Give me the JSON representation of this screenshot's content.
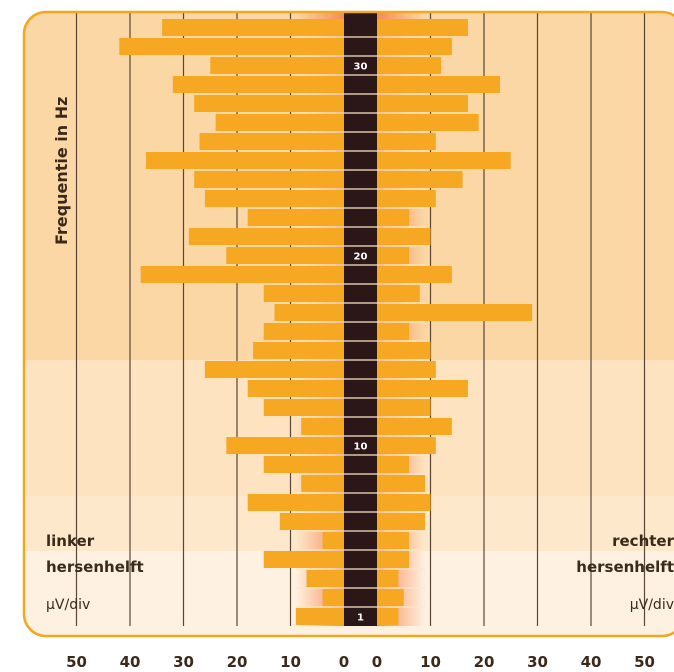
{
  "chart_data": {
    "type": "bar",
    "orientation": "horizontal-mirrored",
    "ylabel": "Frequentie in Hz",
    "frequency_labels": [
      {
        "freq": 30,
        "text": "30"
      },
      {
        "freq": 20,
        "text": "20"
      },
      {
        "freq": 10,
        "text": "10"
      },
      {
        "freq": 1,
        "text": "1"
      }
    ],
    "y_range": [
      1,
      32
    ],
    "x_range": [
      0,
      50
    ],
    "left": {
      "label_line1": "linker",
      "label_line2": "hersenhelft",
      "unit": "µV/div",
      "ticks": [
        "50",
        "40",
        "30",
        "20",
        "10",
        "0"
      ]
    },
    "right": {
      "label_line1": "rechter",
      "label_line2": "hersenhelft",
      "unit": "µV/div",
      "ticks": [
        "0",
        "10",
        "20",
        "30",
        "40",
        "50"
      ]
    },
    "series": [
      {
        "name": "linker hersenhelft",
        "values": [
          9,
          4,
          7,
          15,
          4,
          12,
          18,
          8,
          15,
          22,
          8,
          15,
          18,
          26,
          17,
          15,
          13,
          15,
          38,
          22,
          29,
          18,
          26,
          28,
          37,
          27,
          24,
          28,
          32,
          25,
          42,
          34
        ]
      },
      {
        "name": "rechter hersenhelft",
        "values": [
          4,
          5,
          4,
          6,
          6,
          9,
          10,
          9,
          6,
          11,
          14,
          10,
          17,
          11,
          10,
          6,
          29,
          8,
          14,
          6,
          10,
          6,
          11,
          16,
          25,
          11,
          19,
          17,
          23,
          12,
          14,
          17
        ]
      }
    ],
    "colors": {
      "frame": "#f2a81d",
      "bar": "#f7a823",
      "center_column": "#2b1618",
      "band_dark": "#fbd7a6",
      "band_mid": "#fde3c0",
      "band_light": "#fef1e1",
      "gridline": "#5b4636"
    }
  }
}
